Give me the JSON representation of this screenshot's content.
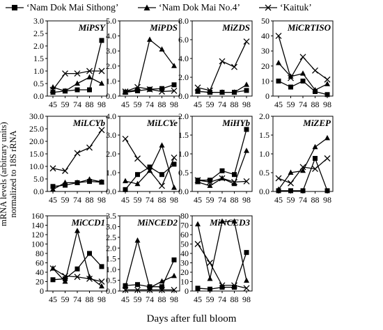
{
  "legend": {
    "items": [
      {
        "label": "‘Nam Dok Mai Sithong’",
        "marker": "square"
      },
      {
        "label": "‘Nam Dok Mai No.4’",
        "marker": "triangle"
      },
      {
        "label": "‘Kaituk’",
        "marker": "cross"
      }
    ]
  },
  "ylabel": {
    "line1": "mRNA levels (arbitrary units)",
    "line2": "normalized to 18S rRNA"
  },
  "xlabel": "Days after full bloom",
  "chart_data": [
    {
      "type": "line",
      "title": "MiPSY",
      "x": [
        "45",
        "59",
        "74",
        "88",
        "98"
      ],
      "ylim": [
        0,
        3
      ],
      "yticks": [
        "0.0",
        "0.5",
        "1.0",
        "1.5",
        "2.0",
        "2.5",
        "3.0"
      ],
      "series": [
        {
          "name": "‘Nam Dok Mai Sithong’",
          "values": [
            0.15,
            0.2,
            0.25,
            0.25,
            2.22
          ]
        },
        {
          "name": "‘Nam Dok Mai No.4’",
          "values": [
            0.35,
            0.2,
            0.5,
            0.75,
            0.5
          ]
        },
        {
          "name": "‘Kaituk’",
          "values": [
            0.25,
            0.9,
            0.9,
            1.0,
            1.0
          ]
        }
      ]
    },
    {
      "type": "line",
      "title": "MiPDS",
      "x": [
        "45",
        "59",
        "74",
        "88",
        "98"
      ],
      "ylim": [
        0,
        5
      ],
      "yticks": [
        "0.0",
        "1.0",
        "2.0",
        "3.0",
        "4.0",
        "5.0"
      ],
      "series": [
        {
          "name": "‘Nam Dok Mai Sithong’",
          "values": [
            0.25,
            0.35,
            0.45,
            0.5,
            0.75
          ]
        },
        {
          "name": "‘Nam Dok Mai No.4’",
          "values": [
            0.3,
            0.4,
            3.75,
            3.1,
            2.0
          ]
        },
        {
          "name": "‘Kaituk’",
          "values": [
            0.3,
            0.6,
            0.45,
            0.3,
            0.35
          ]
        }
      ]
    },
    {
      "type": "line",
      "title": "MiZDS",
      "x": [
        "45",
        "59",
        "74",
        "88",
        "98"
      ],
      "ylim": [
        0,
        8
      ],
      "yticks": [
        "0.0",
        "2.0",
        "4.0",
        "6.0",
        "8.0"
      ],
      "series": [
        {
          "name": "‘Nam Dok Mai Sithong’",
          "values": [
            0.5,
            0.4,
            0.4,
            0.4,
            0.6
          ]
        },
        {
          "name": "‘Nam Dok Mai No.4’",
          "values": [
            0.5,
            0.4,
            0.4,
            0.4,
            1.2
          ]
        },
        {
          "name": "‘Kaituk’",
          "values": [
            0.9,
            0.6,
            3.7,
            3.1,
            5.8
          ]
        }
      ]
    },
    {
      "type": "line",
      "title": "MiCRTISO",
      "x": [
        "45",
        "59",
        "74",
        "88",
        "98"
      ],
      "ylim": [
        0,
        50
      ],
      "yticks": [
        "0",
        "10",
        "20",
        "30",
        "40",
        "50"
      ],
      "series": [
        {
          "name": "‘Nam Dok Mai Sithong’",
          "values": [
            10,
            6,
            10,
            3,
            1
          ]
        },
        {
          "name": "‘Nam Dok Mai No.4’",
          "values": [
            22,
            13,
            15,
            4,
            8
          ]
        },
        {
          "name": "‘Kaituk’",
          "values": [
            40,
            12,
            26,
            17,
            11
          ]
        }
      ]
    },
    {
      "type": "line",
      "title": "MiLCYb",
      "x": [
        "45",
        "59",
        "74",
        "88",
        "98"
      ],
      "ylim": [
        0,
        30
      ],
      "yticks": [
        "0.0",
        "5.0",
        "10.0",
        "15.0",
        "20.0",
        "25.0",
        "30.0"
      ],
      "series": [
        {
          "name": "‘Nam Dok Mai Sithong’",
          "values": [
            2,
            2.5,
            3.5,
            4,
            3.7
          ]
        },
        {
          "name": "‘Nam Dok Mai No.4’",
          "values": [
            0.8,
            3.5,
            3.5,
            4.8,
            3.8
          ]
        },
        {
          "name": "‘Kaituk’",
          "values": [
            9.2,
            8.2,
            15.3,
            17.5,
            24.5
          ]
        }
      ]
    },
    {
      "type": "line",
      "title": "MiLCYe",
      "x": [
        "45",
        "59",
        "74",
        "88",
        "98"
      ],
      "ylim": [
        0,
        4
      ],
      "yticks": [
        "0.0",
        "1.0",
        "2.0",
        "3.0",
        "4.0"
      ],
      "series": [
        {
          "name": "‘Nam Dok Mai Sithong’",
          "values": [
            0.1,
            0.9,
            1.3,
            0.9,
            1.45
          ]
        },
        {
          "name": "‘Nam Dok Mai No.4’",
          "values": [
            0.55,
            0.4,
            1.1,
            2.45,
            0.2
          ]
        },
        {
          "name": "‘Kaituk’",
          "values": [
            2.8,
            1.75,
            1.1,
            0.3,
            1.8
          ]
        }
      ]
    },
    {
      "type": "line",
      "title": "MiHYb",
      "x": [
        "45",
        "59",
        "74",
        "88",
        "98"
      ],
      "ylim": [
        0,
        2
      ],
      "yticks": [
        "0.0",
        "0.5",
        "1.0",
        "1.5",
        "2.0"
      ],
      "series": [
        {
          "name": "‘Nam Dok Mai Sithong’",
          "values": [
            0.3,
            0.3,
            0.55,
            0.45,
            1.65
          ]
        },
        {
          "name": "‘Nam Dok Mai No.4’",
          "values": [
            0.25,
            0.15,
            0.35,
            0.2,
            1.08
          ]
        },
        {
          "name": "‘Kaituk’",
          "values": [
            0.3,
            0.25,
            0.35,
            0.25,
            0.27
          ]
        }
      ]
    },
    {
      "type": "line",
      "title": "MiZEP",
      "x": [
        "45",
        "59",
        "74",
        "88",
        "98"
      ],
      "ylim": [
        0,
        2
      ],
      "yticks": [
        "0.0",
        "0.5",
        "1.0",
        "1.5",
        "2.0"
      ],
      "series": [
        {
          "name": "‘Nam Dok Mai Sithong’",
          "values": [
            0.02,
            0.02,
            0.02,
            0.88,
            0.02
          ]
        },
        {
          "name": "‘Nam Dok Mai No.4’",
          "values": [
            0.05,
            0.5,
            0.55,
            1.18,
            1.42
          ]
        },
        {
          "name": "‘Kaituk’",
          "values": [
            0.35,
            0.22,
            0.65,
            0.6,
            0.88
          ]
        }
      ]
    },
    {
      "type": "line",
      "title": "MiCCD1",
      "x": [
        "45",
        "59",
        "74",
        "88",
        "98"
      ],
      "ylim": [
        0,
        160
      ],
      "yticks": [
        "0",
        "20",
        "40",
        "60",
        "80",
        "100",
        "120",
        "140",
        "160"
      ],
      "series": [
        {
          "name": "‘Nam Dok Mai Sithong’",
          "values": [
            24,
            26,
            47,
            80,
            52
          ]
        },
        {
          "name": "‘Nam Dok Mai No.4’",
          "values": [
            48,
            20,
            128,
            30,
            10
          ]
        },
        {
          "name": "‘Kaituk’",
          "values": [
            48,
            32,
            30,
            26,
            20
          ]
        }
      ]
    },
    {
      "type": "line",
      "title": "MiNCED2",
      "x": [
        "45",
        "59",
        "74",
        "88",
        "98"
      ],
      "ylim": [
        0,
        3.5
      ],
      "yticks": [
        "0.0",
        "0.5",
        "1.0",
        "1.5",
        "2.0",
        "2.5",
        "3.0",
        "3.5"
      ],
      "series": [
        {
          "name": "‘Nam Dok Mai Sithong’",
          "values": [
            0.25,
            0.3,
            0.2,
            0.2,
            1.45
          ]
        },
        {
          "name": "‘Nam Dok Mai No.4’",
          "values": [
            0.2,
            2.35,
            0.15,
            0.45,
            0.7
          ]
        },
        {
          "name": "‘Kaituk’",
          "values": [
            0.05,
            0.05,
            0.05,
            0.05,
            0.05
          ]
        }
      ]
    },
    {
      "type": "line",
      "title": "MiNCED3",
      "x": [
        "45",
        "59",
        "74",
        "88",
        "98"
      ],
      "ylim": [
        0,
        80
      ],
      "yticks": [
        "0",
        "10",
        "20",
        "30",
        "40",
        "50",
        "60",
        "70",
        "80"
      ],
      "series": [
        {
          "name": "‘Nam Dok Mai Sithong’",
          "values": [
            3,
            2,
            4,
            4,
            41
          ]
        },
        {
          "name": "‘Nam Dok Mai No.4’",
          "values": [
            71,
            13,
            74,
            74,
            11
          ]
        },
        {
          "name": "‘Kaituk’",
          "values": [
            50,
            30,
            6,
            6,
            3
          ]
        }
      ]
    }
  ]
}
